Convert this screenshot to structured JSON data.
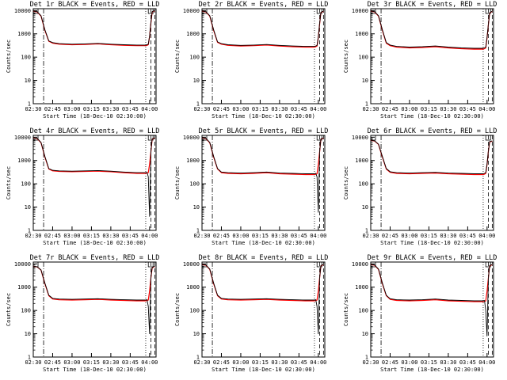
{
  "figure": {
    "xlabel": "Start Time (18-Dec-10 02:30:00)",
    "ylabel": "Counts/sec",
    "series_legend": "BLACK = Events, RED = LLD",
    "colors": {
      "events": "#000000",
      "lld": "#ff0000",
      "axes": "#000000"
    }
  },
  "chart_data": [
    {
      "type": "line",
      "title": "Det 1r BLACK = Events, RED = LLD",
      "xlabel": "Start Time (18-Dec-10 02:30:00)",
      "ylabel": "Counts/sec",
      "yscale": "log",
      "ylim": [
        1,
        12000
      ],
      "x_ticks": [
        "02:30",
        "02:45",
        "03:00",
        "03:15",
        "03:30",
        "03:45",
        "04:00"
      ],
      "y_ticks": [
        "1",
        "10",
        "100",
        "1000",
        "10000"
      ],
      "x": [
        "02:30",
        "02:33",
        "02:36",
        "02:39",
        "02:42",
        "02:45",
        "02:50",
        "03:00",
        "03:10",
        "03:20",
        "03:30",
        "03:40",
        "03:50",
        "03:57",
        "03:58",
        "03:59",
        "04:00",
        "04:01",
        "04:02",
        "04:04"
      ],
      "series": [
        {
          "values": [
            9500,
            9000,
            6000,
            1500,
            500,
            420,
            380,
            360,
            370,
            390,
            360,
            340,
            330,
            330,
            340,
            360,
            800,
            3000,
            9000,
            10000
          ]
        },
        {
          "values": [
            9400,
            8800,
            5800,
            1400,
            480,
            400,
            360,
            340,
            350,
            370,
            340,
            320,
            310,
            310,
            320,
            340,
            760,
            2900,
            8800,
            9800
          ]
        }
      ]
    },
    {
      "type": "line",
      "title": "Det 2r BLACK = Events, RED = LLD",
      "xlabel": "Start Time (18-Dec-10 02:30:00)",
      "ylabel": "Counts/sec",
      "yscale": "log",
      "ylim": [
        1,
        12000
      ],
      "x_ticks": [
        "02:30",
        "02:45",
        "03:00",
        "03:15",
        "03:30",
        "03:45",
        "04:00"
      ],
      "y_ticks": [
        "1",
        "10",
        "100",
        "1000",
        "10000"
      ],
      "x": [
        "02:30",
        "02:33",
        "02:36",
        "02:39",
        "02:42",
        "02:45",
        "02:50",
        "03:00",
        "03:10",
        "03:20",
        "03:30",
        "03:40",
        "03:50",
        "03:57",
        "03:58",
        "03:59",
        "04:00",
        "04:01",
        "04:02",
        "04:04"
      ],
      "series": [
        {
          "values": [
            9500,
            9000,
            6000,
            1500,
            450,
            380,
            340,
            320,
            330,
            350,
            320,
            300,
            290,
            290,
            300,
            320,
            750,
            2800,
            8500,
            9500
          ]
        },
        {
          "values": [
            9400,
            8800,
            5800,
            1400,
            430,
            360,
            320,
            300,
            310,
            330,
            300,
            280,
            270,
            270,
            280,
            300,
            700,
            2700,
            8300,
            9300
          ]
        }
      ]
    },
    {
      "type": "line",
      "title": "Det 3r BLACK = Events, RED = LLD",
      "xlabel": "Start Time (18-Dec-10 02:30:00)",
      "ylabel": "Counts/sec",
      "yscale": "log",
      "ylim": [
        1,
        12000
      ],
      "x_ticks": [
        "02:30",
        "02:45",
        "03:00",
        "03:15",
        "03:30",
        "03:45",
        "04:00"
      ],
      "y_ticks": [
        "1",
        "10",
        "100",
        "1000",
        "10000"
      ],
      "x": [
        "02:30",
        "02:33",
        "02:36",
        "02:39",
        "02:42",
        "02:45",
        "02:50",
        "03:00",
        "03:10",
        "03:20",
        "03:30",
        "03:40",
        "03:50",
        "03:57",
        "03:58",
        "03:59",
        "04:00",
        "04:01",
        "04:02",
        "04:04"
      ],
      "series": [
        {
          "values": [
            9500,
            9000,
            6000,
            1500,
            420,
            330,
            290,
            270,
            280,
            300,
            270,
            250,
            240,
            240,
            250,
            270,
            700,
            2600,
            8000,
            9500
          ]
        },
        {
          "values": [
            9400,
            8800,
            5800,
            1400,
            400,
            310,
            270,
            250,
            260,
            280,
            250,
            230,
            220,
            220,
            230,
            250,
            660,
            2500,
            7800,
            9300
          ]
        }
      ]
    },
    {
      "type": "line",
      "title": "Det 4r BLACK = Events, RED = LLD",
      "xlabel": "Start Time (18-Dec-10 02:30:00)",
      "ylabel": "Counts/sec",
      "yscale": "log",
      "ylim": [
        1,
        12000
      ],
      "x_ticks": [
        "02:30",
        "02:45",
        "03:00",
        "03:15",
        "03:30",
        "03:45",
        "04:00"
      ],
      "y_ticks": [
        "1",
        "10",
        "100",
        "1000",
        "10000"
      ],
      "x": [
        "02:30",
        "02:33",
        "02:36",
        "02:39",
        "02:42",
        "02:45",
        "02:50",
        "03:00",
        "03:10",
        "03:20",
        "03:30",
        "03:40",
        "03:50",
        "03:57",
        "03:58",
        "03:59",
        "04:00",
        "04:01",
        "04:02",
        "04:04"
      ],
      "series": [
        {
          "values": [
            9500,
            9000,
            6000,
            1500,
            450,
            380,
            360,
            350,
            360,
            370,
            350,
            320,
            300,
            300,
            310,
            200,
            4,
            2500,
            8500,
            9500
          ]
        },
        {
          "values": [
            9400,
            8800,
            5800,
            1400,
            430,
            360,
            340,
            330,
            340,
            350,
            330,
            300,
            280,
            280,
            290,
            300,
            700,
            2400,
            8300,
            9300
          ]
        }
      ]
    },
    {
      "type": "line",
      "title": "Det 5r BLACK = Events, RED = LLD",
      "xlabel": "Start Time (18-Dec-10 02:30:00)",
      "ylabel": "Counts/sec",
      "yscale": "log",
      "ylim": [
        1,
        12000
      ],
      "x_ticks": [
        "02:30",
        "02:45",
        "03:00",
        "03:15",
        "03:30",
        "03:45",
        "04:00"
      ],
      "y_ticks": [
        "1",
        "10",
        "100",
        "1000",
        "10000"
      ],
      "x": [
        "02:30",
        "02:33",
        "02:36",
        "02:39",
        "02:42",
        "02:45",
        "02:50",
        "03:00",
        "03:10",
        "03:20",
        "03:30",
        "03:40",
        "03:50",
        "03:57",
        "03:58",
        "03:59",
        "04:00",
        "04:01",
        "04:02",
        "04:04"
      ],
      "series": [
        {
          "values": [
            9500,
            9000,
            6000,
            1500,
            450,
            320,
            300,
            290,
            300,
            320,
            290,
            280,
            270,
            270,
            280,
            200,
            6,
            2500,
            8500,
            9500
          ]
        },
        {
          "values": [
            9400,
            8800,
            5800,
            1400,
            430,
            300,
            280,
            270,
            280,
            300,
            270,
            260,
            250,
            250,
            260,
            270,
            680,
            2400,
            8300,
            9300
          ]
        }
      ]
    },
    {
      "type": "line",
      "title": "Det 6r BLACK = Events, RED = LLD",
      "xlabel": "Start Time (18-Dec-10 02:30:00)",
      "ylabel": "Counts/sec",
      "yscale": "log",
      "ylim": [
        1,
        12000
      ],
      "x_ticks": [
        "02:30",
        "02:45",
        "03:00",
        "03:15",
        "03:30",
        "03:45",
        "04:00"
      ],
      "y_ticks": [
        "1",
        "10",
        "100",
        "1000",
        "10000"
      ],
      "x": [
        "02:30",
        "02:33",
        "02:36",
        "02:39",
        "02:42",
        "02:45",
        "02:50",
        "03:00",
        "03:10",
        "03:20",
        "03:30",
        "03:40",
        "03:50",
        "03:57",
        "03:58",
        "03:59",
        "04:00",
        "04:01",
        "04:02",
        "04:04"
      ],
      "series": [
        {
          "values": [
            7500,
            7000,
            5000,
            1500,
            450,
            330,
            300,
            290,
            300,
            310,
            290,
            280,
            270,
            270,
            280,
            300,
            700,
            2600,
            6500,
            7000
          ]
        },
        {
          "values": [
            7400,
            6900,
            4900,
            1400,
            430,
            310,
            280,
            270,
            280,
            290,
            270,
            260,
            250,
            250,
            260,
            280,
            660,
            2500,
            6300,
            6800
          ]
        }
      ]
    },
    {
      "type": "line",
      "title": "Det 7r BLACK = Events, RED = LLD",
      "xlabel": "Start Time (18-Dec-10 02:30:00)",
      "ylabel": "Counts/sec",
      "yscale": "log",
      "ylim": [
        1,
        12000
      ],
      "x_ticks": [
        "02:30",
        "02:45",
        "03:00",
        "03:15",
        "03:30",
        "03:45",
        "04:00"
      ],
      "y_ticks": [
        "1",
        "10",
        "100",
        "1000",
        "10000"
      ],
      "x": [
        "02:30",
        "02:33",
        "02:36",
        "02:39",
        "02:42",
        "02:45",
        "02:50",
        "03:00",
        "03:10",
        "03:20",
        "03:30",
        "03:40",
        "03:50",
        "03:57",
        "03:58",
        "03:59",
        "04:00",
        "04:01",
        "04:02",
        "04:04"
      ],
      "series": [
        {
          "values": [
            8000,
            7500,
            5500,
            1500,
            450,
            330,
            310,
            300,
            310,
            320,
            300,
            290,
            280,
            280,
            290,
            150,
            10,
            2600,
            7000,
            8000
          ]
        },
        {
          "values": [
            7900,
            7400,
            5400,
            1400,
            430,
            310,
            290,
            280,
            290,
            300,
            280,
            270,
            260,
            260,
            270,
            280,
            680,
            2500,
            6800,
            7800
          ]
        }
      ]
    },
    {
      "type": "line",
      "title": "Det 8r BLACK = Events, RED = LLD",
      "xlabel": "Start Time (18-Dec-10 02:30:00)",
      "ylabel": "Counts/sec",
      "yscale": "log",
      "ylim": [
        1,
        12000
      ],
      "x_ticks": [
        "02:30",
        "02:45",
        "03:00",
        "03:15",
        "03:30",
        "03:45",
        "04:00"
      ],
      "y_ticks": [
        "1",
        "10",
        "100",
        "1000",
        "10000"
      ],
      "x": [
        "02:30",
        "02:33",
        "02:36",
        "02:39",
        "02:42",
        "02:45",
        "02:50",
        "03:00",
        "03:10",
        "03:20",
        "03:30",
        "03:40",
        "03:50",
        "03:57",
        "03:58",
        "03:59",
        "04:00",
        "04:01",
        "04:02",
        "04:04"
      ],
      "series": [
        {
          "values": [
            9500,
            9000,
            6000,
            1500,
            450,
            330,
            310,
            300,
            310,
            320,
            300,
            290,
            280,
            280,
            290,
            150,
            10,
            2600,
            8500,
            9500
          ]
        },
        {
          "values": [
            9400,
            8800,
            5800,
            1400,
            430,
            310,
            290,
            280,
            290,
            300,
            280,
            270,
            260,
            260,
            270,
            280,
            680,
            2500,
            8300,
            9300
          ]
        }
      ]
    },
    {
      "type": "line",
      "title": "Det 9r BLACK = Events, RED = LLD",
      "xlabel": "Start Time (18-Dec-10 02:30:00)",
      "ylabel": "Counts/sec",
      "yscale": "log",
      "ylim": [
        1,
        12000
      ],
      "x_ticks": [
        "02:30",
        "02:45",
        "03:00",
        "03:15",
        "03:30",
        "03:45",
        "04:00"
      ],
      "y_ticks": [
        "1",
        "10",
        "100",
        "1000",
        "10000"
      ],
      "x": [
        "02:30",
        "02:33",
        "02:36",
        "02:39",
        "02:42",
        "02:45",
        "02:50",
        "03:00",
        "03:10",
        "03:20",
        "03:30",
        "03:40",
        "03:50",
        "03:57",
        "03:58",
        "03:59",
        "04:00",
        "04:01",
        "04:02",
        "04:04"
      ],
      "series": [
        {
          "values": [
            9500,
            9000,
            6000,
            1500,
            450,
            320,
            290,
            280,
            290,
            310,
            280,
            270,
            260,
            260,
            270,
            100,
            8,
            2600,
            8500,
            9500
          ]
        },
        {
          "values": [
            9400,
            8800,
            5800,
            1400,
            430,
            300,
            270,
            260,
            270,
            290,
            260,
            250,
            240,
            240,
            250,
            260,
            660,
            2500,
            8300,
            9300
          ]
        }
      ]
    }
  ]
}
